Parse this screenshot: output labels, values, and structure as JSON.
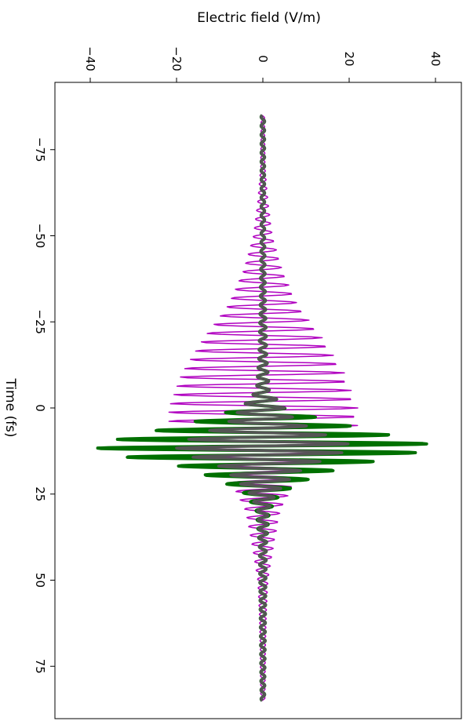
{
  "chart_data": {
    "type": "line",
    "orientation": "rotated-90",
    "title": "",
    "xlabel": "Time (fs)",
    "ylabel": "Electric field (V/m)",
    "xlim": [
      -87,
      90
    ],
    "ylim": [
      -45,
      45
    ],
    "x_ticks": [
      -75,
      -50,
      -25,
      0,
      25,
      50,
      75
    ],
    "x_tick_labels": [
      "−75",
      "−50",
      "−25",
      "0",
      "25",
      "50",
      "75"
    ],
    "y_ticks": [
      -40,
      -20,
      0,
      20,
      40
    ],
    "y_tick_labels": [
      "−40",
      "−20",
      "0",
      "20",
      "40"
    ],
    "grid": false,
    "legend": "none",
    "series": [
      {
        "color": "#b000c0",
        "linewidth": 1.5,
        "samples": 700,
        "envelope": [
          [
            -85,
            0.4
          ],
          [
            -70,
            0.5
          ],
          [
            -60,
            1.2
          ],
          [
            -50,
            2.2
          ],
          [
            -40,
            4.5
          ],
          [
            -30,
            8
          ],
          [
            -20,
            14
          ],
          [
            -10,
            19
          ],
          [
            0,
            22
          ],
          [
            5,
            22
          ],
          [
            10,
            19
          ],
          [
            15,
            13
          ],
          [
            20,
            8
          ],
          [
            30,
            4
          ],
          [
            40,
            2.5
          ],
          [
            50,
            1.2
          ],
          [
            60,
            0.8
          ],
          [
            70,
            0.6
          ],
          [
            85,
            0.5
          ]
        ],
        "period_fs": 2.55,
        "t_range": [
          -85,
          85
        ]
      },
      {
        "color": "#007000",
        "linewidth": 4,
        "samples": 1400,
        "envelope": [
          [
            -85,
            0.4
          ],
          [
            -70,
            0.4
          ],
          [
            -50,
            0.4
          ],
          [
            -30,
            0.6
          ],
          [
            -15,
            0.9
          ],
          [
            -5,
            1.5
          ],
          [
            0,
            5
          ],
          [
            4,
            16
          ],
          [
            8,
            30
          ],
          [
            11,
            40
          ],
          [
            14,
            33
          ],
          [
            17,
            19
          ],
          [
            21,
            10
          ],
          [
            25,
            4
          ],
          [
            30,
            1.5
          ],
          [
            40,
            0.8
          ],
          [
            60,
            0.6
          ],
          [
            85,
            0.4
          ]
        ],
        "period_fs": 2.6,
        "t_range": [
          -85,
          85
        ]
      },
      {
        "color": "#555555",
        "linewidth": 3.5,
        "samples": 1400,
        "envelope": [
          [
            -85,
            0.4
          ],
          [
            -70,
            0.4
          ],
          [
            -50,
            0.4
          ],
          [
            -30,
            0.6
          ],
          [
            -15,
            0.9
          ],
          [
            -5,
            1.5
          ],
          [
            0,
            5
          ],
          [
            4,
            8
          ],
          [
            8,
            15
          ],
          [
            11,
            21
          ],
          [
            14,
            17
          ],
          [
            17,
            10
          ],
          [
            21,
            6
          ],
          [
            25,
            3
          ],
          [
            30,
            1.2
          ],
          [
            40,
            0.8
          ],
          [
            60,
            0.6
          ],
          [
            85,
            0.4
          ]
        ],
        "period_fs": 2.6,
        "t_range": [
          -85,
          85
        ]
      }
    ]
  }
}
